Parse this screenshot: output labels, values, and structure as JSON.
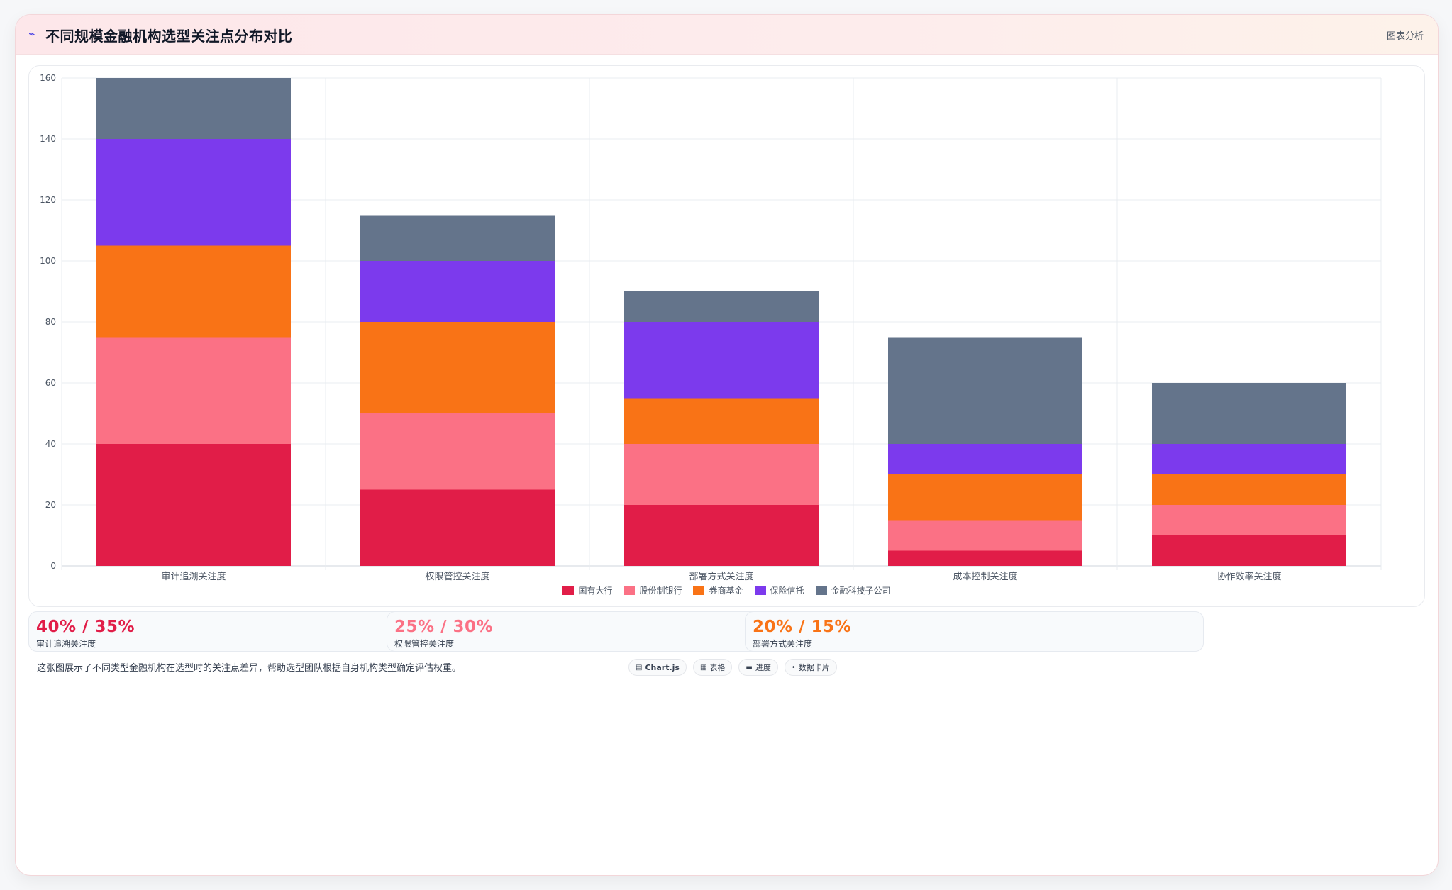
{
  "header": {
    "icon": "chart-line-icon",
    "title": "不同规模金融机构选型关注点分布对比",
    "action_label": "图表分析"
  },
  "chart_data": {
    "type": "bar",
    "stacked": true,
    "title": "",
    "xlabel": "",
    "ylabel": "",
    "ylim": [
      0,
      160
    ],
    "yticks": [
      0,
      20,
      40,
      60,
      80,
      100,
      120,
      140,
      160
    ],
    "grid": true,
    "legend_position": "bottom",
    "categories": [
      "审计追溯关注度",
      "权限管控关注度",
      "部署方式关注度",
      "成本控制关注度",
      "协作效率关注度"
    ],
    "series": [
      {
        "name": "国有大行",
        "color": "#e11d48",
        "values": [
          40,
          25,
          20,
          5,
          10
        ]
      },
      {
        "name": "股份制银行",
        "color": "#fb7185",
        "values": [
          35,
          25,
          20,
          10,
          10
        ]
      },
      {
        "name": "券商基金",
        "color": "#f97316",
        "values": [
          30,
          30,
          15,
          15,
          10
        ]
      },
      {
        "name": "保险信托",
        "color": "#7c3aed",
        "values": [
          35,
          20,
          25,
          10,
          10
        ]
      },
      {
        "name": "金融科技子公司",
        "color": "#64748b",
        "values": [
          20,
          15,
          10,
          35,
          20
        ]
      }
    ]
  },
  "stats": [
    {
      "value": "40% / 35%",
      "label": "审计追溯关注度",
      "color": "#e11d48"
    },
    {
      "value": "25% / 30%",
      "label": "权限管控关注度",
      "color": "#fb7185"
    },
    {
      "value": "20% / 15%",
      "label": "部署方式关注度",
      "color": "#f97316"
    }
  ],
  "footer": {
    "note": "这张图展示了不同类型金融机构在选型时的关注点差异，帮助选型团队根据自身机构类型确定评估权重。",
    "chips": [
      {
        "icon": "chart-icon",
        "glyph": "▤",
        "label": "Chart.js"
      },
      {
        "icon": "table-icon",
        "glyph": "▦",
        "label": "表格"
      },
      {
        "icon": "progress-icon",
        "glyph": "▬",
        "label": "进度"
      },
      {
        "icon": "card-icon",
        "glyph": "•",
        "label": "数据卡片"
      }
    ]
  }
}
